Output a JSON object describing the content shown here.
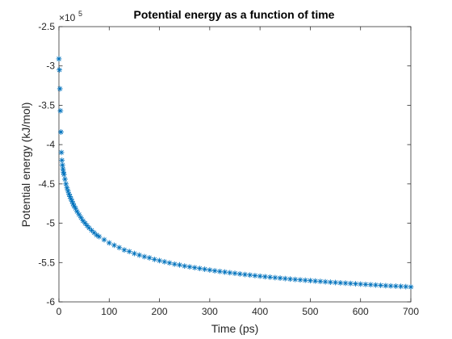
{
  "chart_data": {
    "type": "scatter",
    "title": "Potential energy as a function of time",
    "xlabel": "Time (ps)",
    "ylabel": "Potential energy (kJ/mol)",
    "y_exponent_base": "×10",
    "y_exponent_power": "5",
    "xlim": [
      0,
      700
    ],
    "ylim": [
      -6,
      -2.5
    ],
    "y_scale_factor": 100000,
    "x_ticks": [
      0,
      100,
      200,
      300,
      400,
      500,
      600,
      700
    ],
    "x_tick_labels": [
      "0",
      "100",
      "200",
      "300",
      "400",
      "500",
      "600",
      "700"
    ],
    "y_ticks": [
      -6,
      -5.5,
      -5,
      -4.5,
      -4,
      -3.5,
      -3,
      -2.5
    ],
    "y_tick_labels": [
      "-6",
      "-5.5",
      "-5",
      "-4.5",
      "-4",
      "-3.5",
      "-3",
      "-2.5"
    ],
    "grid": false,
    "marker": "asterisk",
    "colors": {
      "series": "#0072BD",
      "axis": "#262626",
      "box": "#262626"
    },
    "series": [
      {
        "x": [
          0,
          1,
          2,
          3,
          4,
          5,
          6,
          7,
          8,
          9,
          10,
          12,
          14,
          16,
          18,
          20,
          22,
          24,
          26,
          28,
          30,
          33,
          36,
          40,
          44,
          48,
          52,
          56,
          60,
          65,
          70,
          75,
          80,
          90,
          100,
          110,
          120,
          130,
          140,
          150,
          160,
          170,
          180,
          190,
          200,
          210,
          220,
          230,
          240,
          250,
          260,
          270,
          280,
          290,
          300,
          310,
          320,
          330,
          340,
          350,
          360,
          370,
          380,
          390,
          400,
          410,
          420,
          430,
          440,
          450,
          460,
          470,
          480,
          490,
          500,
          510,
          520,
          530,
          540,
          550,
          560,
          570,
          580,
          590,
          600,
          610,
          620,
          630,
          640,
          650,
          660,
          670,
          680,
          690,
          700
        ],
        "values": [
          -2.91,
          -3.05,
          -3.29,
          -3.57,
          -3.84,
          -4.1,
          -4.2,
          -4.26,
          -4.31,
          -4.35,
          -4.38,
          -4.44,
          -4.5,
          -4.55,
          -4.59,
          -4.63,
          -4.66,
          -4.69,
          -4.72,
          -4.75,
          -4.78,
          -4.81,
          -4.85,
          -4.89,
          -4.93,
          -4.97,
          -5.0,
          -5.03,
          -5.06,
          -5.09,
          -5.12,
          -5.15,
          -5.17,
          -5.21,
          -5.25,
          -5.28,
          -5.31,
          -5.34,
          -5.36,
          -5.385,
          -5.405,
          -5.425,
          -5.44,
          -5.46,
          -5.475,
          -5.49,
          -5.505,
          -5.52,
          -5.53,
          -5.545,
          -5.555,
          -5.565,
          -5.575,
          -5.585,
          -5.595,
          -5.605,
          -5.613,
          -5.621,
          -5.629,
          -5.637,
          -5.645,
          -5.652,
          -5.659,
          -5.666,
          -5.673,
          -5.68,
          -5.686,
          -5.692,
          -5.698,
          -5.704,
          -5.71,
          -5.715,
          -5.72,
          -5.725,
          -5.73,
          -5.735,
          -5.74,
          -5.745,
          -5.75,
          -5.754,
          -5.758,
          -5.762,
          -5.766,
          -5.77,
          -5.774,
          -5.778,
          -5.782,
          -5.786,
          -5.79,
          -5.794,
          -5.797,
          -5.8,
          -5.803,
          -5.806,
          -5.81
        ]
      }
    ]
  }
}
